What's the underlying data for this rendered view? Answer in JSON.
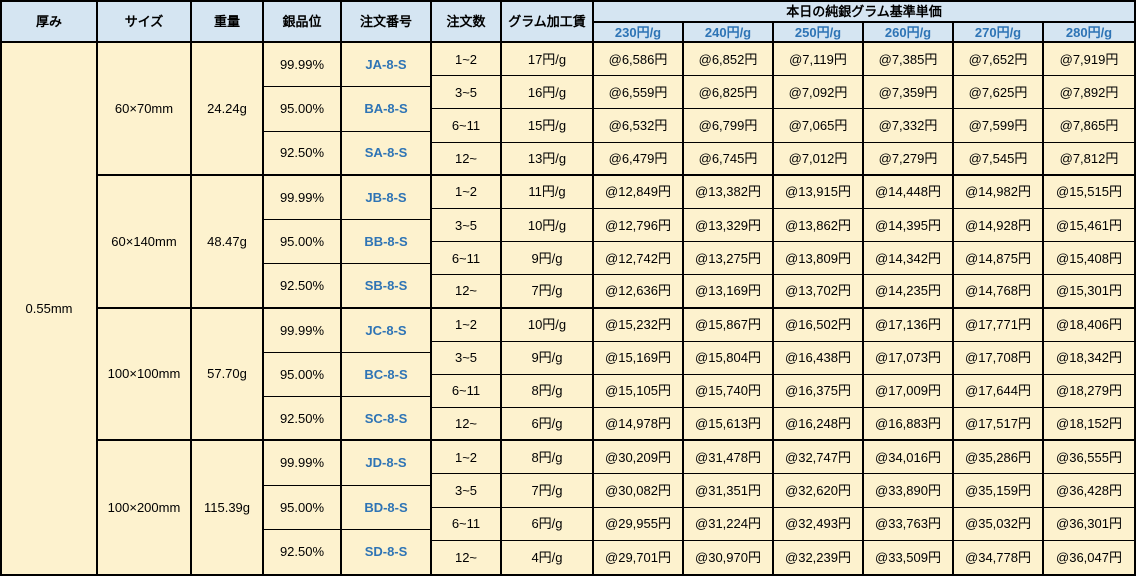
{
  "table": {
    "headers": {
      "thickness": "厚み",
      "size": "サイズ",
      "weight": "重量",
      "purity": "銀品位",
      "order_no": "注文番号",
      "order_qty": "注文数",
      "gram_fee": "グラム加工賃",
      "price_group": "本日の純銀グラム基準単価",
      "price_columns": [
        "230円/g",
        "240円/g",
        "250円/g",
        "260円/g",
        "270円/g",
        "280円/g"
      ]
    },
    "thickness_value": "0.55mm",
    "groups": [
      {
        "size": "60×70mm",
        "weight": "24.24g",
        "purities": [
          {
            "purity": "99.99%",
            "order_no": "JA-8-S"
          },
          {
            "purity": "95.00%",
            "order_no": "BA-8-S"
          },
          {
            "purity": "92.50%",
            "order_no": "SA-8-S"
          }
        ],
        "rows": [
          {
            "qty": "1~2",
            "fee": "17円/g",
            "prices": [
              "@6,586円",
              "@6,852円",
              "@7,119円",
              "@7,385円",
              "@7,652円",
              "@7,919円"
            ]
          },
          {
            "qty": "3~5",
            "fee": "16円/g",
            "prices": [
              "@6,559円",
              "@6,825円",
              "@7,092円",
              "@7,359円",
              "@7,625円",
              "@7,892円"
            ]
          },
          {
            "qty": "6~11",
            "fee": "15円/g",
            "prices": [
              "@6,532円",
              "@6,799円",
              "@7,065円",
              "@7,332円",
              "@7,599円",
              "@7,865円"
            ]
          },
          {
            "qty": "12~",
            "fee": "13円/g",
            "prices": [
              "@6,479円",
              "@6,745円",
              "@7,012円",
              "@7,279円",
              "@7,545円",
              "@7,812円"
            ]
          }
        ]
      },
      {
        "size": "60×140mm",
        "weight": "48.47g",
        "purities": [
          {
            "purity": "99.99%",
            "order_no": "JB-8-S"
          },
          {
            "purity": "95.00%",
            "order_no": "BB-8-S"
          },
          {
            "purity": "92.50%",
            "order_no": "SB-8-S"
          }
        ],
        "rows": [
          {
            "qty": "1~2",
            "fee": "11円/g",
            "prices": [
              "@12,849円",
              "@13,382円",
              "@13,915円",
              "@14,448円",
              "@14,982円",
              "@15,515円"
            ]
          },
          {
            "qty": "3~5",
            "fee": "10円/g",
            "prices": [
              "@12,796円",
              "@13,329円",
              "@13,862円",
              "@14,395円",
              "@14,928円",
              "@15,461円"
            ]
          },
          {
            "qty": "6~11",
            "fee": "9円/g",
            "prices": [
              "@12,742円",
              "@13,275円",
              "@13,809円",
              "@14,342円",
              "@14,875円",
              "@15,408円"
            ]
          },
          {
            "qty": "12~",
            "fee": "7円/g",
            "prices": [
              "@12,636円",
              "@13,169円",
              "@13,702円",
              "@14,235円",
              "@14,768円",
              "@15,301円"
            ]
          }
        ]
      },
      {
        "size": "100×100mm",
        "weight": "57.70g",
        "purities": [
          {
            "purity": "99.99%",
            "order_no": "JC-8-S"
          },
          {
            "purity": "95.00%",
            "order_no": "BC-8-S"
          },
          {
            "purity": "92.50%",
            "order_no": "SC-8-S"
          }
        ],
        "rows": [
          {
            "qty": "1~2",
            "fee": "10円/g",
            "prices": [
              "@15,232円",
              "@15,867円",
              "@16,502円",
              "@17,136円",
              "@17,771円",
              "@18,406円"
            ]
          },
          {
            "qty": "3~5",
            "fee": "9円/g",
            "prices": [
              "@15,169円",
              "@15,804円",
              "@16,438円",
              "@17,073円",
              "@17,708円",
              "@18,342円"
            ]
          },
          {
            "qty": "6~11",
            "fee": "8円/g",
            "prices": [
              "@15,105円",
              "@15,740円",
              "@16,375円",
              "@17,009円",
              "@17,644円",
              "@18,279円"
            ]
          },
          {
            "qty": "12~",
            "fee": "6円/g",
            "prices": [
              "@14,978円",
              "@15,613円",
              "@16,248円",
              "@16,883円",
              "@17,517円",
              "@18,152円"
            ]
          }
        ]
      },
      {
        "size": "100×200mm",
        "weight": "115.39g",
        "purities": [
          {
            "purity": "99.99%",
            "order_no": "JD-8-S"
          },
          {
            "purity": "95.00%",
            "order_no": "BD-8-S"
          },
          {
            "purity": "92.50%",
            "order_no": "SD-8-S"
          }
        ],
        "rows": [
          {
            "qty": "1~2",
            "fee": "8円/g",
            "prices": [
              "@30,209円",
              "@31,478円",
              "@32,747円",
              "@34,016円",
              "@35,286円",
              "@36,555円"
            ]
          },
          {
            "qty": "3~5",
            "fee": "7円/g",
            "prices": [
              "@30,082円",
              "@31,351円",
              "@32,620円",
              "@33,890円",
              "@35,159円",
              "@36,428円"
            ]
          },
          {
            "qty": "6~11",
            "fee": "6円/g",
            "prices": [
              "@29,955円",
              "@31,224円",
              "@32,493円",
              "@33,763円",
              "@35,032円",
              "@36,301円"
            ]
          },
          {
            "qty": "12~",
            "fee": "4円/g",
            "prices": [
              "@29,701円",
              "@30,970円",
              "@32,239円",
              "@33,509円",
              "@34,778円",
              "@36,047円"
            ]
          }
        ]
      }
    ],
    "colors": {
      "header_bg": "#d5e5f2",
      "cell_bg": "#fdf2ce",
      "accent_blue": "#2e74b5",
      "border": "#000000"
    }
  }
}
